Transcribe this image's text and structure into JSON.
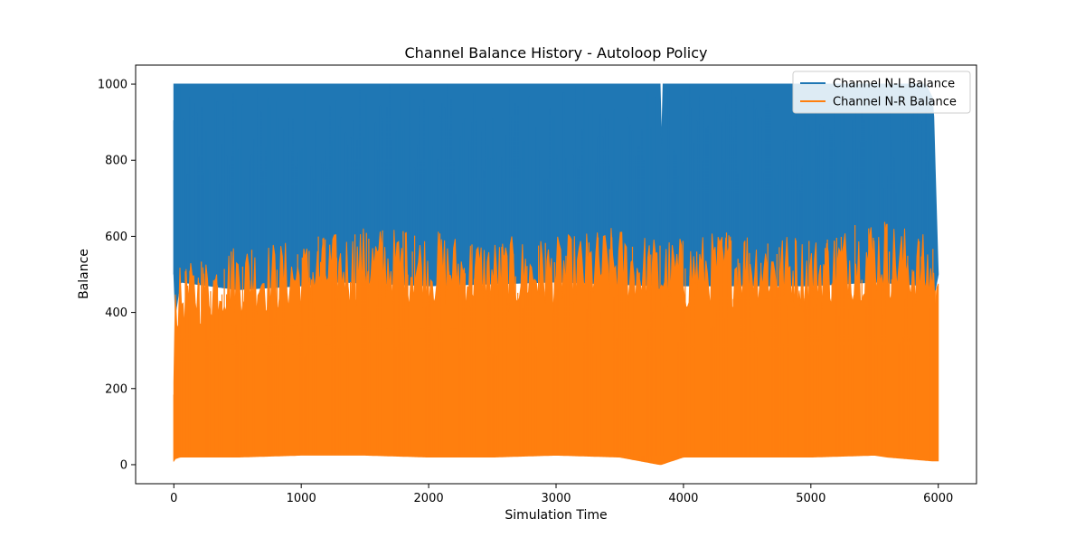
{
  "chart_data": {
    "type": "line",
    "title": "Channel Balance History - Autoloop Policy",
    "xlabel": "Simulation Time",
    "ylabel": "Balance",
    "xlim": [
      -300,
      6300
    ],
    "ylim": [
      -50,
      1050
    ],
    "xticks": [
      0,
      1000,
      2000,
      3000,
      4000,
      5000,
      6000
    ],
    "yticks": [
      0,
      200,
      400,
      600,
      800,
      1000
    ],
    "grid": false,
    "legend_position": "top-right",
    "series": [
      {
        "name": "Channel N-L Balance",
        "color": "#1f77b4",
        "x": [
          0,
          5,
          50,
          500,
          1000,
          1300,
          2000,
          3000,
          3800,
          3820,
          3830,
          3840,
          4000,
          5000,
          5500,
          5900,
          5960,
          6000
        ],
        "upper": [
          1000,
          1000,
          1000,
          1000,
          1000,
          1000,
          1000,
          1000,
          1000,
          1000,
          800,
          1000,
          1000,
          1000,
          1000,
          1000,
          960,
          500
        ],
        "lower": [
          500,
          380,
          480,
          460,
          470,
          480,
          470,
          480,
          470,
          330,
          470,
          460,
          470,
          470,
          480,
          470,
          430,
          500
        ]
      },
      {
        "name": "Channel N-R Balance",
        "color": "#ff7f0e",
        "x": [
          0,
          5,
          50,
          500,
          1000,
          1500,
          2000,
          2500,
          3000,
          3500,
          3820,
          4000,
          4500,
          5000,
          5500,
          5600,
          5950,
          6000
        ],
        "upper": [
          320,
          500,
          520,
          590,
          590,
          630,
          620,
          600,
          600,
          630,
          600,
          600,
          630,
          600,
          660,
          650,
          600,
          500
        ],
        "lower": [
          10,
          15,
          20,
          20,
          25,
          25,
          20,
          20,
          25,
          20,
          0,
          20,
          20,
          20,
          25,
          20,
          10,
          10
        ]
      }
    ]
  }
}
